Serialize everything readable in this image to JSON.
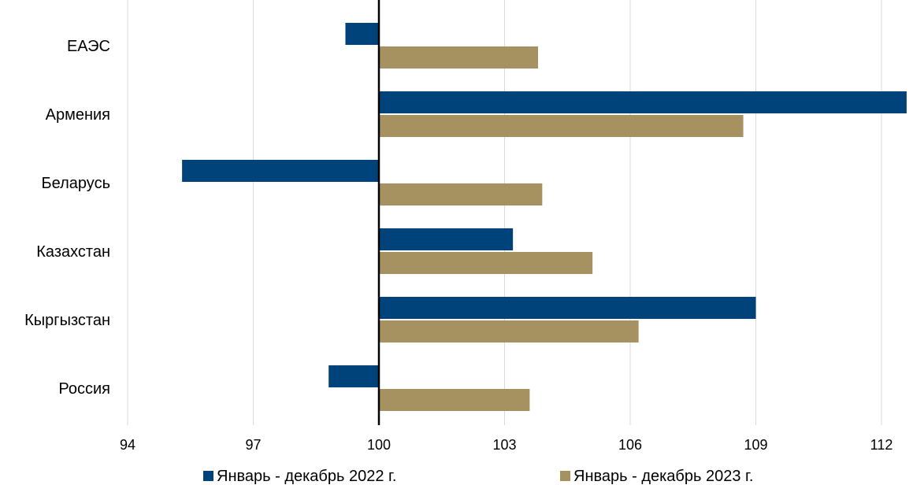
{
  "colors": {
    "series_2022": "#00427A",
    "series_2023": "#A69260",
    "grid": "#D9D9D9",
    "baseline": "#000000"
  },
  "chart_data": {
    "type": "bar",
    "orientation": "horizontal",
    "categories": [
      "ЕАЭС",
      "Армения",
      "Беларусь",
      "Казахстан",
      "Кыргызстан",
      "Россия"
    ],
    "series": [
      {
        "name": "Январь - декабрь 2022 г.",
        "values": [
          99.2,
          112.6,
          95.3,
          103.2,
          109.0,
          98.8
        ]
      },
      {
        "name": "Январь - декабрь 2023 г.",
        "values": [
          103.8,
          108.7,
          103.9,
          105.1,
          106.2,
          103.6
        ]
      }
    ],
    "xlim": [
      94,
      112.9
    ],
    "xticks": [
      "94",
      "97",
      "100",
      "103",
      "106",
      "109",
      "112"
    ],
    "baseline": 100,
    "grid": true,
    "legend_position": "bottom"
  }
}
